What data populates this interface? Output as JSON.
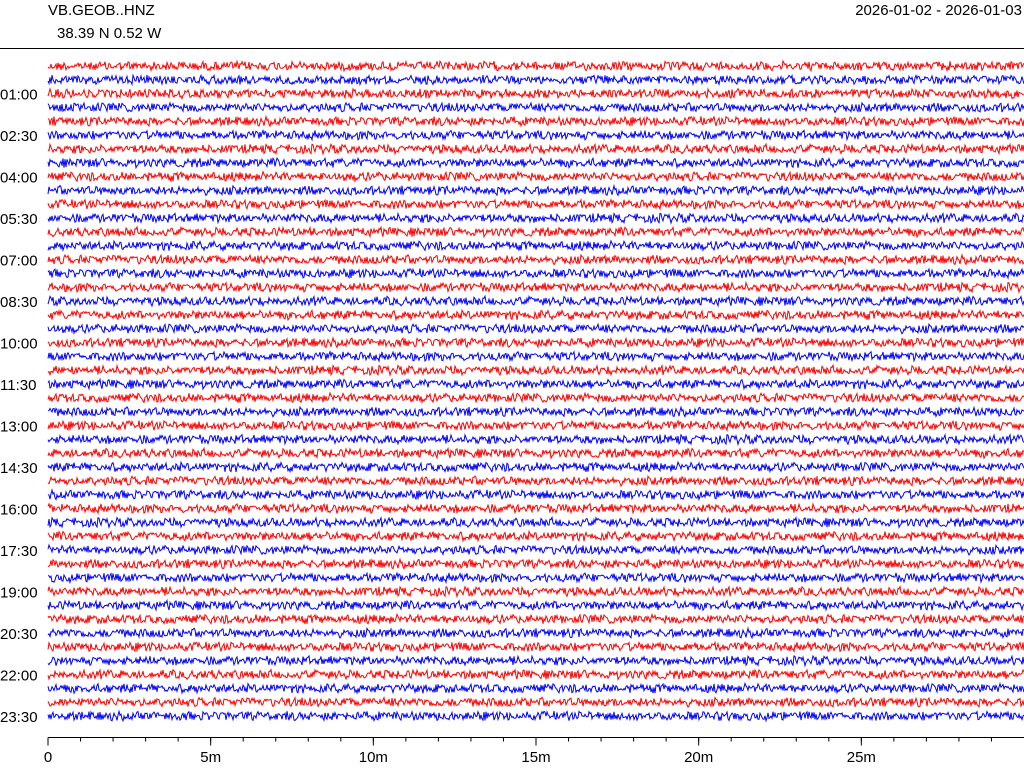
{
  "chart_data": {
    "type": "helicorder",
    "title": "VB.GEOB..HNZ",
    "subtitle": "38.39 N 0.52 W",
    "date_range": "2026-01-02 - 2026-01-03",
    "colors": [
      "#ff0000",
      "#0000ff"
    ],
    "xlim": [
      0,
      30
    ],
    "xticks": [
      0,
      {
        "value": 5,
        "label": "5m"
      },
      {
        "value": 10,
        "label": "10m"
      },
      {
        "value": 15,
        "label": "15m"
      },
      {
        "value": 20,
        "label": "20m"
      },
      {
        "value": 25,
        "label": "25m"
      }
    ],
    "ylim": [
      0,
      1410
    ],
    "yticks": [
      {
        "value": 60,
        "label": "01:00"
      },
      {
        "value": 150,
        "label": "02:30"
      },
      {
        "value": 240,
        "label": "04:00"
      },
      {
        "value": 330,
        "label": "05:30"
      },
      {
        "value": 420,
        "label": "07:00"
      },
      {
        "value": 510,
        "label": "08:30"
      },
      {
        "value": 600,
        "label": "10:00"
      },
      {
        "value": 690,
        "label": "11:30"
      },
      {
        "value": 780,
        "label": "13:00"
      },
      {
        "value": 870,
        "label": "14:30"
      },
      {
        "value": 960,
        "label": "16:00"
      },
      {
        "value": 1050,
        "label": "17:30"
      },
      {
        "value": 1140,
        "label": "19:00"
      },
      {
        "value": 1230,
        "label": "20:30"
      },
      {
        "value": 1320,
        "label": "22:00"
      },
      {
        "value": 1410,
        "label": "23:30"
      }
    ]
  }
}
